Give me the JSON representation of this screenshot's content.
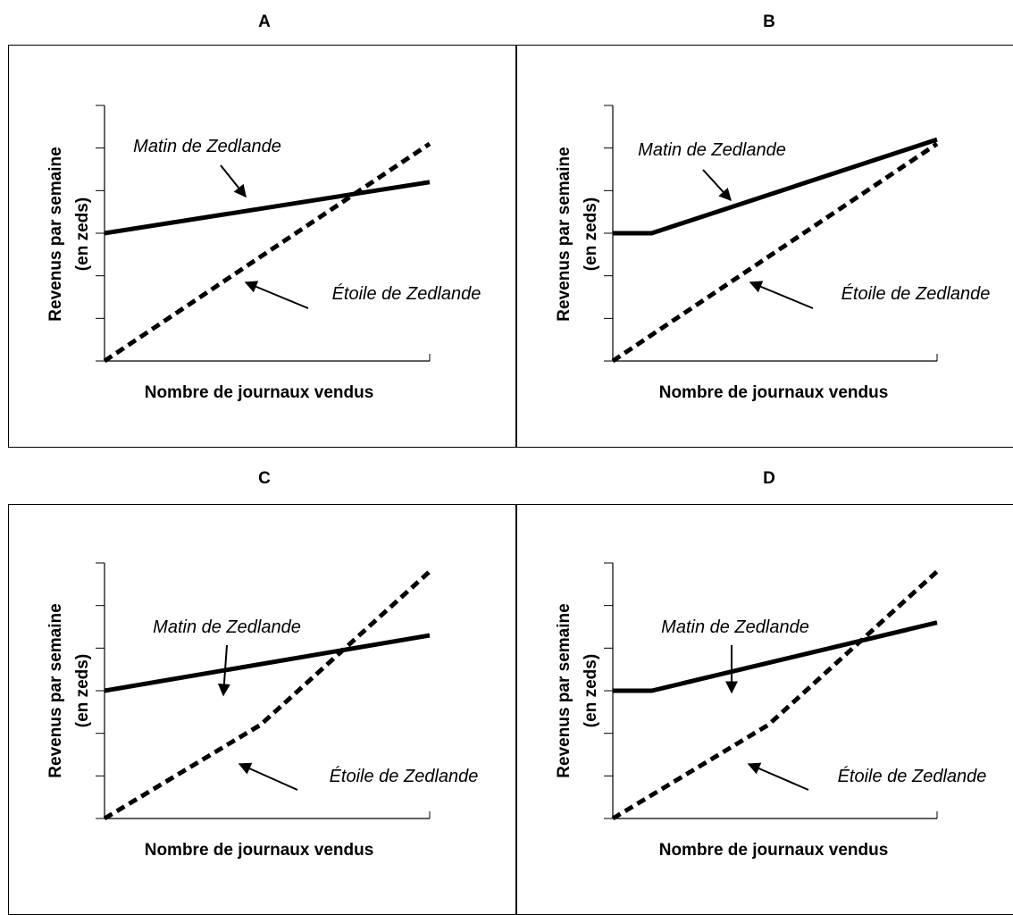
{
  "chart_data": [
    {
      "panel": "A",
      "type": "line",
      "xlabel": "Nombre de journaux vendus",
      "ylabel": [
        "Revenus par semaine",
        "(en zeds)"
      ],
      "xlim": [
        0,
        10
      ],
      "ylim": [
        0,
        6
      ],
      "series": [
        {
          "name": "Matin de Zedlande",
          "style": "solid",
          "points": [
            [
              0,
              3
            ],
            [
              10,
              4.2
            ]
          ]
        },
        {
          "name": "Étoile de Zedlande",
          "style": "dashed",
          "points": [
            [
              0,
              0
            ],
            [
              10,
              5.1
            ]
          ]
        }
      ]
    },
    {
      "panel": "B",
      "type": "line",
      "xlabel": "Nombre de journaux vendus",
      "ylabel": [
        "Revenus par semaine",
        "(en zeds)"
      ],
      "xlim": [
        0,
        10
      ],
      "ylim": [
        0,
        6
      ],
      "series": [
        {
          "name": "Matin de Zedlande",
          "style": "solid",
          "points": [
            [
              0,
              3
            ],
            [
              1.2,
              3
            ],
            [
              10,
              5.2
            ]
          ]
        },
        {
          "name": "Étoile de Zedlande",
          "style": "dashed",
          "points": [
            [
              0,
              0
            ],
            [
              10,
              5.1
            ]
          ]
        }
      ]
    },
    {
      "panel": "C",
      "type": "line",
      "xlabel": "Nombre de journaux vendus",
      "ylabel": [
        "Revenus par semaine",
        "(en zeds)"
      ],
      "xlim": [
        0,
        10
      ],
      "ylim": [
        0,
        6
      ],
      "series": [
        {
          "name": "Matin de Zedlande",
          "style": "solid",
          "points": [
            [
              0,
              3
            ],
            [
              10,
              4.3
            ]
          ]
        },
        {
          "name": "Étoile de Zedlande",
          "style": "dashed",
          "points": [
            [
              0,
              0
            ],
            [
              4.8,
              2.2
            ],
            [
              10,
              5.8
            ]
          ]
        }
      ]
    },
    {
      "panel": "D",
      "type": "line",
      "xlabel": "Nombre de journaux vendus",
      "ylabel": [
        "Revenus par semaine",
        "(en zeds)"
      ],
      "xlim": [
        0,
        10
      ],
      "ylim": [
        0,
        6
      ],
      "series": [
        {
          "name": "Matin de Zedlande",
          "style": "solid",
          "points": [
            [
              0,
              3
            ],
            [
              1.2,
              3
            ],
            [
              10,
              4.6
            ]
          ]
        },
        {
          "name": "Étoile de Zedlande",
          "style": "dashed",
          "points": [
            [
              0,
              0
            ],
            [
              4.8,
              2.2
            ],
            [
              10,
              5.8
            ]
          ]
        }
      ]
    }
  ]
}
